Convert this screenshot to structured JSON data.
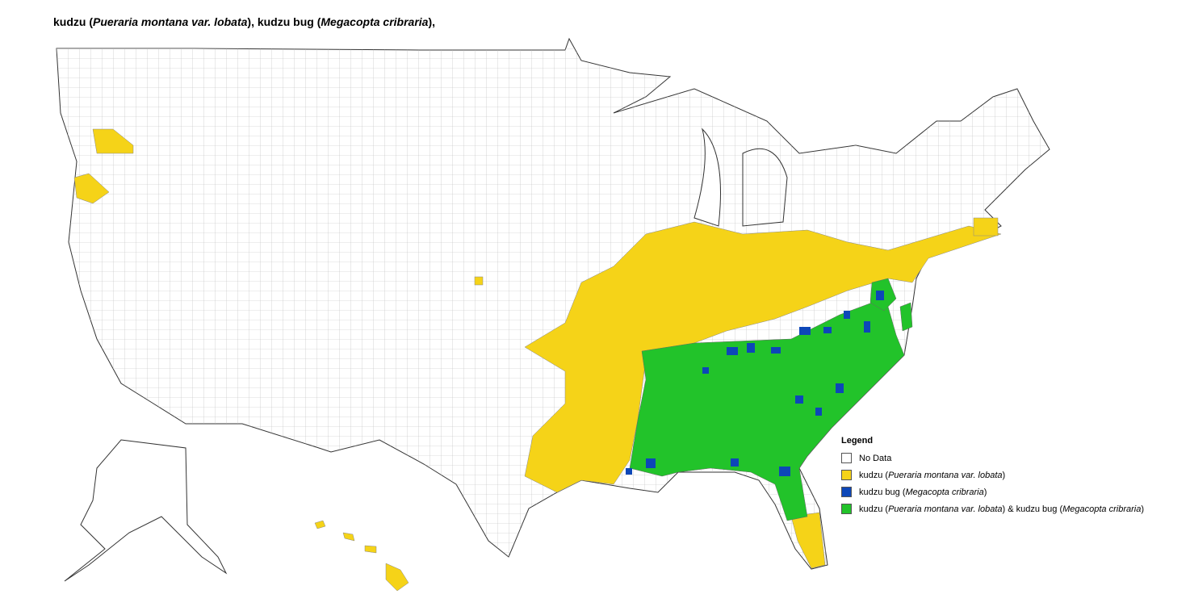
{
  "title": {
    "parts": [
      {
        "text": "kudzu (",
        "italic": false
      },
      {
        "text": "Pueraria montana var. lobata",
        "italic": true
      },
      {
        "text": "), kudzu bug (",
        "italic": false
      },
      {
        "text": "Megacopta cribraria",
        "italic": true
      },
      {
        "text": "),",
        "italic": false
      }
    ]
  },
  "legend": {
    "heading": "Legend",
    "items": [
      {
        "color": "#ffffff",
        "parts": [
          {
            "text": "No Data",
            "italic": false
          }
        ]
      },
      {
        "color": "#f5d318",
        "parts": [
          {
            "text": "kudzu (",
            "italic": false
          },
          {
            "text": "Pueraria montana var. lobata",
            "italic": true
          },
          {
            "text": ")",
            "italic": false
          }
        ]
      },
      {
        "color": "#0d47b8",
        "parts": [
          {
            "text": "kudzu bug (",
            "italic": false
          },
          {
            "text": "Megacopta cribraria",
            "italic": true
          },
          {
            "text": ")",
            "italic": false
          }
        ]
      },
      {
        "color": "#22c32a",
        "parts": [
          {
            "text": "kudzu (",
            "italic": false
          },
          {
            "text": "Pueraria montana var. lobata",
            "italic": true
          },
          {
            "text": ") & kudzu bug (",
            "italic": false
          },
          {
            "text": "Megacopta cribraria",
            "italic": true
          },
          {
            "text": ")",
            "italic": false
          }
        ]
      }
    ]
  }
}
